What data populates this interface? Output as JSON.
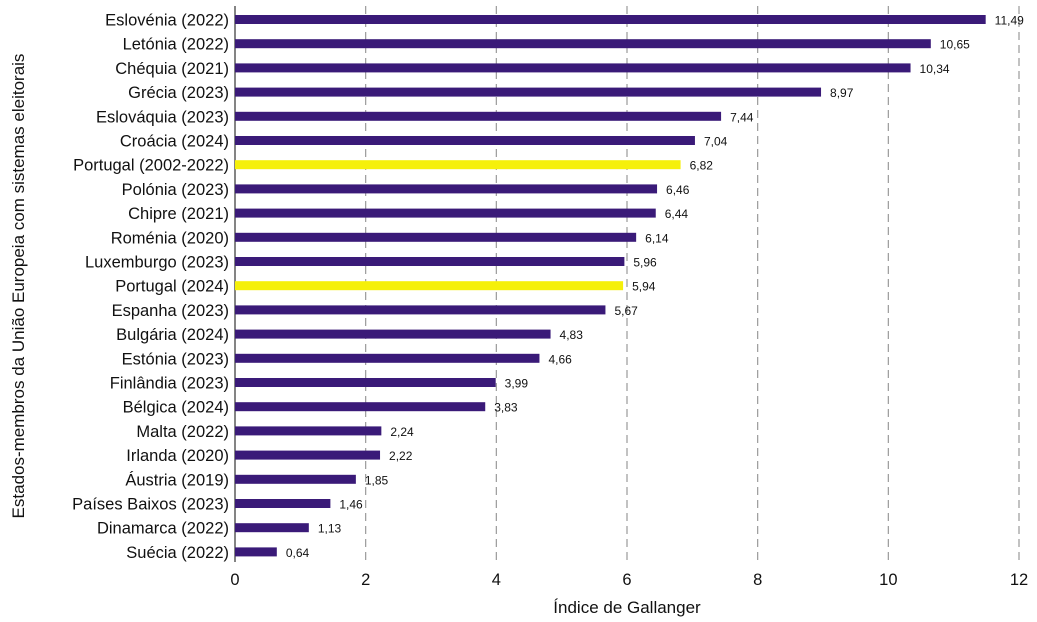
{
  "chart_data": {
    "type": "bar",
    "orientation": "horizontal",
    "xlabel": "Índice de Gallanger",
    "ylabel": "Estados-membros da União Europeia com sistemas eleitorais",
    "xlim": [
      0,
      12
    ],
    "xticks": [
      "0",
      "2",
      "4",
      "6",
      "8",
      "10",
      "12"
    ],
    "grid": "vertical dashed",
    "colors": {
      "default": "#3a1a78",
      "highlight": "#f5f00a"
    },
    "categories": [
      "Eslovénia (2022)",
      "Letónia (2022)",
      "Chéquia (2021)",
      "Grécia (2023)",
      "Eslováquia (2023)",
      "Croácia (2024)",
      "Portugal (2002-2022)",
      "Polónia (2023)",
      "Chipre (2021)",
      "Roménia (2020)",
      "Luxemburgo (2023)",
      "Portugal (2024)",
      "Espanha (2023)",
      "Bulgária (2024)",
      "Estónia (2023)",
      "Finlândia (2023)",
      "Bélgica (2024)",
      "Malta (2022)",
      "Irlanda (2020)",
      "Áustria (2019)",
      "Países Baixos (2023)",
      "Dinamarca (2022)",
      "Suécia (2022)"
    ],
    "values": [
      11.49,
      10.65,
      10.34,
      8.97,
      7.44,
      7.04,
      6.82,
      6.46,
      6.44,
      6.14,
      5.96,
      5.94,
      5.67,
      4.83,
      4.66,
      3.99,
      3.83,
      2.24,
      2.22,
      1.85,
      1.46,
      1.13,
      0.64
    ],
    "value_labels": [
      "11,49",
      "10,65",
      "10,34",
      "8,97",
      "7,44",
      "7,04",
      "6,82",
      "6,46",
      "6,44",
      "6,14",
      "5,96",
      "5,94",
      "5,67",
      "4,83",
      "4,66",
      "3,99",
      "3,83",
      "2,24",
      "2,22",
      "1,85",
      "1,46",
      "1,13",
      "0,64"
    ],
    "highlighted": [
      "Portugal (2002-2022)",
      "Portugal (2024)"
    ]
  }
}
